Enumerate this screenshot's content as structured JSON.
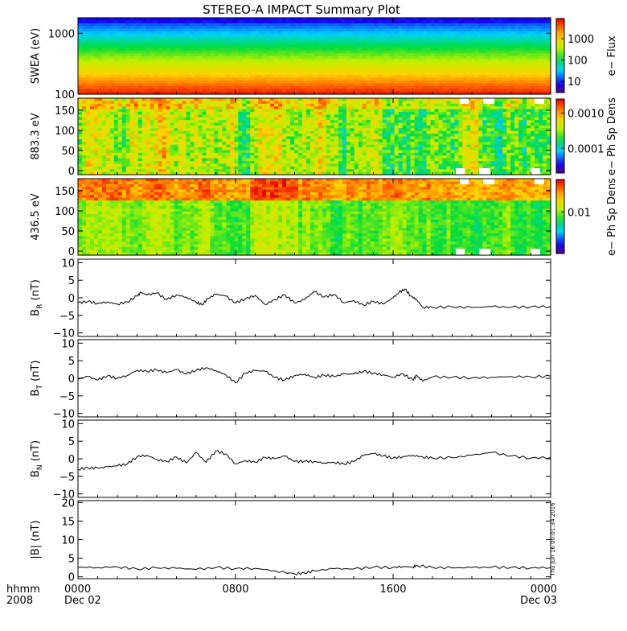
{
  "title": "STEREO-A IMPACT Summary Plot",
  "timestamp": "Thu Jun 16 00:01:34 2016",
  "time_axis": {
    "label_top": "hhmm",
    "label_bottom": "2008",
    "ticks": [
      {
        "t": 0,
        "label": "0000",
        "sub": "Dec 02"
      },
      {
        "t": 8,
        "label": "0800",
        "sub": ""
      },
      {
        "t": 16,
        "label": "1600",
        "sub": ""
      },
      {
        "t": 24,
        "label": "0000",
        "sub": "Dec 03"
      }
    ],
    "range_hours": [
      0,
      24
    ]
  },
  "chart_data": [
    {
      "type": "heatmap",
      "ylabel": "SWEA (eV)",
      "yscale": "log",
      "ylim": [
        100,
        1800
      ],
      "yticks": [
        {
          "v": 1000,
          "label": "1000"
        },
        {
          "v": 100,
          "label": "100"
        }
      ],
      "colorbar": {
        "label": "e− Flux",
        "scale": "log",
        "range": [
          3,
          9000
        ],
        "ticks": [
          {
            "v": 1000,
            "label": "1000"
          },
          {
            "v": 100,
            "label": "100"
          },
          {
            "v": 10,
            "label": "10"
          }
        ]
      },
      "profile": "energy",
      "seed": 11
    },
    {
      "type": "heatmap",
      "ylabel": "883.3 eV",
      "yscale": "linear",
      "ylim": [
        -10,
        180
      ],
      "yticks": [
        {
          "v": 150,
          "label": "150"
        },
        {
          "v": 100,
          "label": "100"
        },
        {
          "v": 50,
          "label": "50"
        },
        {
          "v": 0,
          "label": "0"
        }
      ],
      "colorbar": {
        "label": "e− Ph Sp Dens",
        "scale": "log",
        "range": [
          2e-05,
          0.0025
        ],
        "ticks": [
          {
            "v": 0.001,
            "label": "0.0010"
          },
          {
            "v": 0.0001,
            "label": "0.0001"
          }
        ]
      },
      "profile": "pad_high",
      "seed": 23
    },
    {
      "type": "heatmap",
      "ylabel": "436.5 eV",
      "yscale": "linear",
      "ylim": [
        -10,
        180
      ],
      "yticks": [
        {
          "v": 150,
          "label": "150"
        },
        {
          "v": 100,
          "label": "100"
        },
        {
          "v": 50,
          "label": "50"
        },
        {
          "v": 0,
          "label": "0"
        }
      ],
      "colorbar": {
        "label": "e− Ph Sp Dens",
        "scale": "log",
        "range": [
          0.001,
          0.06
        ],
        "ticks": [
          {
            "v": 0.01,
            "label": "0.01"
          }
        ]
      },
      "profile": "pad_low",
      "seed": 37
    },
    {
      "type": "line",
      "ylabel": "B",
      "ylabel_sub": "R",
      "ylabel_unit": "(nT)",
      "ylim": [
        -11,
        11
      ],
      "yticks": [
        {
          "v": 10,
          "label": "10"
        },
        {
          "v": 5,
          "label": "5"
        },
        {
          "v": 0,
          "label": "0"
        },
        {
          "v": -5,
          "label": "−5"
        },
        {
          "v": -10,
          "label": "−10"
        }
      ],
      "x": [
        0,
        0.5,
        1,
        1.5,
        2,
        2.5,
        3,
        3.2,
        3.5,
        4,
        4.5,
        5,
        5.5,
        6,
        6.3,
        6.6,
        7,
        7.5,
        8,
        8.5,
        9,
        9.5,
        10,
        10.5,
        11,
        11.5,
        12,
        12.5,
        13,
        13.5,
        14,
        14.5,
        15,
        15.5,
        16,
        16.3,
        16.6,
        16.9,
        17.2,
        17.5,
        18,
        19,
        20,
        21,
        22,
        23,
        24
      ],
      "y": [
        -1.5,
        -1.0,
        -1.6,
        -1.2,
        -1.8,
        -1.2,
        0.5,
        1.5,
        0.8,
        1.4,
        -0.5,
        0.8,
        0.2,
        -1.2,
        -2.0,
        -0.2,
        1.0,
        0.5,
        -1.5,
        -0.3,
        0.7,
        -1.9,
        -0.5,
        0.8,
        -1.5,
        -0.5,
        1.8,
        0.2,
        1.0,
        -1.4,
        -0.8,
        -2.1,
        -1.0,
        -1.8,
        0,
        1.5,
        2.5,
        0.5,
        -0.5,
        -2.7,
        -2.7,
        -2.6,
        -2.8,
        -2.5,
        -2.7,
        -2.6,
        -2.5
      ]
    },
    {
      "type": "line",
      "ylabel": "B",
      "ylabel_sub": "T",
      "ylabel_unit": "(nT)",
      "ylim": [
        -11,
        11
      ],
      "yticks": [
        {
          "v": 10,
          "label": "10"
        },
        {
          "v": 5,
          "label": "5"
        },
        {
          "v": 0,
          "label": "0"
        },
        {
          "v": -5,
          "label": "−5"
        },
        {
          "v": -10,
          "label": "−10"
        }
      ],
      "x": [
        0,
        0.5,
        1,
        1.5,
        2,
        2.5,
        3,
        3.5,
        4,
        4.5,
        5,
        5.5,
        6,
        6.5,
        7,
        7.5,
        8,
        8.5,
        9,
        9.5,
        10,
        10.5,
        11,
        11.5,
        12,
        12.5,
        13,
        13.5,
        14,
        14.5,
        15,
        15.5,
        16,
        16.5,
        17,
        17.2,
        17.5,
        18,
        19,
        20,
        21,
        22,
        23,
        24
      ],
      "y": [
        -0.2,
        0.5,
        -0.5,
        0.7,
        0,
        0.8,
        2.3,
        2.0,
        2.4,
        1.6,
        2.5,
        1.2,
        2.3,
        3.0,
        2.2,
        1.0,
        -1.3,
        1.5,
        2.2,
        2.0,
        0.2,
        -0.5,
        0.8,
        1.2,
        0.2,
        0.9,
        0.5,
        1.2,
        1.2,
        2.0,
        1.4,
        1.0,
        0.3,
        1.3,
        -0.5,
        0.8,
        -0.8,
        0.4,
        0.3,
        0.1,
        0.3,
        0.5,
        0.4,
        0.6
      ]
    },
    {
      "type": "line",
      "ylabel": "B",
      "ylabel_sub": "N",
      "ylabel_unit": "(nT)",
      "ylim": [
        -11,
        11
      ],
      "yticks": [
        {
          "v": 10,
          "label": "10"
        },
        {
          "v": 5,
          "label": "5"
        },
        {
          "v": 0,
          "label": "0"
        },
        {
          "v": -5,
          "label": "−5"
        },
        {
          "v": -10,
          "label": "−10"
        }
      ],
      "x": [
        0,
        0.5,
        1,
        1.5,
        2,
        2.5,
        3,
        3.5,
        4,
        4.5,
        5,
        5.5,
        6,
        6.5,
        7,
        7.5,
        8,
        8.5,
        9,
        9.5,
        10,
        10.5,
        11,
        11.5,
        12,
        12.5,
        13,
        13.5,
        14,
        14.5,
        15,
        15.5,
        16,
        16.5,
        17,
        17.5,
        18,
        19,
        20,
        21,
        22,
        23,
        24
      ],
      "y": [
        -3.0,
        -2.6,
        -2.7,
        -2.3,
        -2.0,
        -1.5,
        0.6,
        1.0,
        -0.2,
        -0.8,
        0.5,
        -1.2,
        1.8,
        -1.0,
        2.2,
        1.4,
        -1.5,
        -0.5,
        -1.0,
        0.4,
        0,
        0.8,
        -0.8,
        -0.7,
        -0.8,
        -1.2,
        -1.0,
        -1.5,
        -0.8,
        1.0,
        1.5,
        0.8,
        0.2,
        0.6,
        1.0,
        0.5,
        0.2,
        0.3,
        1.0,
        1.8,
        0.8,
        0.2,
        0.4
      ]
    },
    {
      "type": "line",
      "ylabel": "|B| (nT)",
      "ylabel_sub": "",
      "ylabel_unit": "",
      "ylim": [
        -0.5,
        20.5
      ],
      "yticks": [
        {
          "v": 20,
          "label": "20"
        },
        {
          "v": 15,
          "label": "15"
        },
        {
          "v": 10,
          "label": "10"
        },
        {
          "v": 5,
          "label": "5"
        },
        {
          "v": 0,
          "label": "0"
        }
      ],
      "x": [
        0,
        1,
        2,
        3,
        4,
        5,
        6,
        7,
        8,
        9,
        10,
        11,
        11.5,
        12,
        13,
        14,
        15,
        16,
        16.5,
        17,
        17.2,
        18,
        19,
        20,
        21,
        22,
        23,
        24
      ],
      "y": [
        2.6,
        2.5,
        2.7,
        2.1,
        2.4,
        2.3,
        2.0,
        2.5,
        2.2,
        2.3,
        1.6,
        0.8,
        1.0,
        1.6,
        2.2,
        2.1,
        2.6,
        2.5,
        2.8,
        2.6,
        3.1,
        2.5,
        2.4,
        2.5,
        2.6,
        2.5,
        2.4,
        2.5
      ]
    }
  ]
}
